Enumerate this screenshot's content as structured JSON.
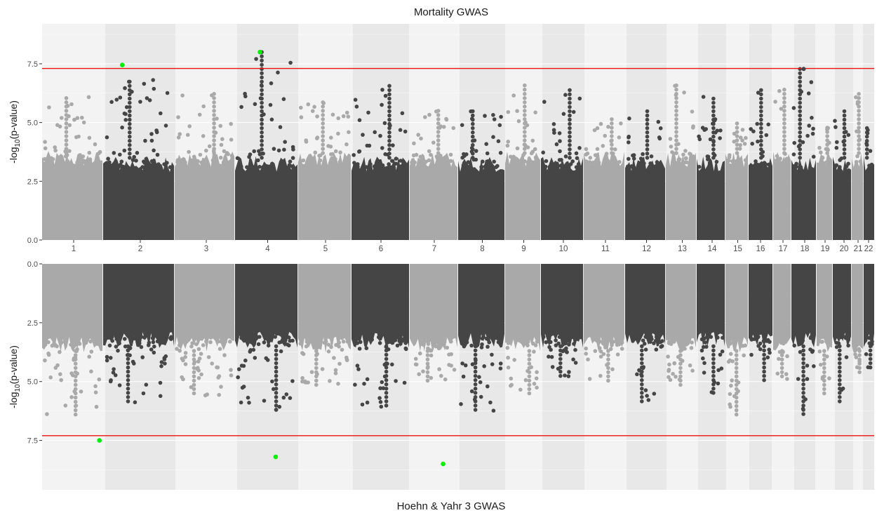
{
  "chart_data": [
    {
      "type": "scatter",
      "title": "Mortality GWAS",
      "ylabel_main": "-log",
      "ylabel_sub": "10",
      "ylabel_tail": "(p-value)",
      "ylim": [
        0,
        9.2
      ],
      "y_ticks": [
        "0.0",
        "2.5",
        "5.0",
        "7.5"
      ],
      "y_tick_values": [
        0,
        2.5,
        5.0,
        7.5
      ],
      "threshold": 7.3,
      "orientation": "upward",
      "chromosomes": [
        "1",
        "2",
        "3",
        "4",
        "5",
        "6",
        "7",
        "8",
        "9",
        "10",
        "11",
        "12",
        "13",
        "14",
        "15",
        "16",
        "17",
        "18",
        "19",
        "20",
        "21",
        "22"
      ],
      "chrom_tops": [
        6.1,
        6.9,
        6.3,
        8.0,
        5.9,
        6.7,
        5.6,
        5.5,
        6.6,
        6.5,
        5.2,
        5.5,
        6.6,
        6.1,
        5.1,
        6.4,
        6.5,
        7.3,
        4.9,
        5.6,
        6.3,
        4.8
      ],
      "significant_hits": [
        {
          "chrom": "2",
          "pos": 0.27,
          "y": 7.45
        },
        {
          "chrom": "4",
          "pos": 0.4,
          "y": 8.0
        }
      ],
      "highlight_near_threshold": {
        "chrom": "18",
        "y": 7.28
      },
      "colors": {
        "odd": "#a9a9a9",
        "even": "#454545",
        "hit": "#00ee00",
        "threshold": "#ee1111",
        "band_light": "#f3f3f3",
        "band_dark": "#e8e8e8"
      }
    },
    {
      "type": "scatter",
      "title": "Hoehn & Yahr 3 GWAS",
      "ylabel_main": "-log",
      "ylabel_sub": "10",
      "ylabel_tail": "(p-value)",
      "ylim": [
        0,
        9.6
      ],
      "y_ticks": [
        "0.0",
        "2.5",
        "5.0",
        "7.5"
      ],
      "y_tick_values": [
        0,
        2.5,
        5.0,
        7.5
      ],
      "threshold": 7.3,
      "orientation": "downward",
      "chrom_tops": [
        6.5,
        5.9,
        5.6,
        6.2,
        5.2,
        6.1,
        5.0,
        6.3,
        5.6,
        4.9,
        5.0,
        6.0,
        5.2,
        5.6,
        6.4,
        5.1,
        4.9,
        6.5,
        5.6,
        6.0,
        4.6,
        4.4
      ],
      "significant_hits": [
        {
          "chrom": "1",
          "pos": 0.95,
          "y": 7.5
        },
        {
          "chrom": "4",
          "pos": 0.65,
          "y": 8.2
        },
        {
          "chrom": "7",
          "pos": 0.7,
          "y": 8.5
        }
      ],
      "colors": {
        "odd": "#a9a9a9",
        "even": "#454545",
        "hit": "#00ee00",
        "threshold": "#ee1111",
        "band_light": "#f3f3f3",
        "band_dark": "#e8e8e8"
      }
    }
  ]
}
